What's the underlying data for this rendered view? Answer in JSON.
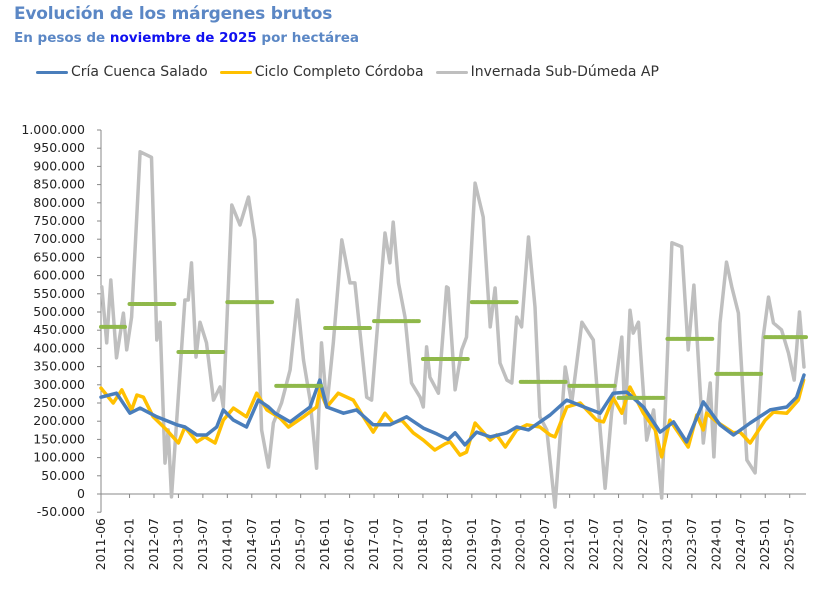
{
  "header": {
    "title": "Evolución de los márgenes brutos",
    "subtitle_prefix": "En pesos de ",
    "subtitle_highlight": "noviembre de 2025",
    "subtitle_suffix": " por hectárea"
  },
  "chart_data": {
    "type": "line",
    "title": "Evolución de los márgenes brutos",
    "subtitle": "En pesos de noviembre de 2025 por hectárea",
    "x_unit": "months since 2011-06",
    "x_range": [
      0,
      173
    ],
    "ylim": [
      -50000,
      1000000
    ],
    "y_ticks": [
      1000000,
      950000,
      900000,
      850000,
      800000,
      750000,
      700000,
      650000,
      600000,
      550000,
      500000,
      450000,
      400000,
      350000,
      300000,
      250000,
      200000,
      150000,
      100000,
      50000,
      0,
      -50000
    ],
    "y_tick_labels": [
      "1.000.000",
      "950.000",
      "900.000",
      "850.000",
      "800.000",
      "750.000",
      "700.000",
      "650.000",
      "600.000",
      "550.000",
      "500.000",
      "450.000",
      "400.000",
      "350.000",
      "300.000",
      "250.000",
      "200.000",
      "150.000",
      "100.000",
      "50.000",
      "0",
      "-50.000"
    ],
    "x_tick_labels": [
      "2011-06",
      "2012-01",
      "2012-07",
      "2013-01",
      "2013-07",
      "2014-01",
      "2014-07",
      "2015-01",
      "2015-07",
      "2016-01",
      "2016-07",
      "2017-01",
      "2017-07",
      "2018-01",
      "2018-07",
      "2019-01",
      "2019-07",
      "2020-01",
      "2020-07",
      "2021-01",
      "2021-07",
      "2022-01",
      "2022-07",
      "2023-01",
      "2023-07",
      "2024-01",
      "2024-07",
      "2025-01",
      "2025-07"
    ],
    "x_tick_months": [
      0,
      7,
      13,
      19,
      25,
      31,
      37,
      43,
      49,
      55,
      61,
      67,
      73,
      79,
      85,
      91,
      97,
      103,
      109,
      115,
      121,
      127,
      133,
      139,
      145,
      151,
      157,
      163,
      169
    ],
    "legend_position": "top-left",
    "grid": false,
    "series": [
      {
        "name": "Cría Cuenca Salado",
        "color": "#4a7ebb",
        "width": 3.5,
        "points": [
          [
            0,
            266000
          ],
          [
            3.8,
            277000
          ],
          [
            7.1,
            222000
          ],
          [
            9.6,
            236000
          ],
          [
            13.7,
            212000
          ],
          [
            18.6,
            190000
          ],
          [
            20.6,
            184000
          ],
          [
            23.5,
            162000
          ],
          [
            25.9,
            162000
          ],
          [
            28.4,
            184000
          ],
          [
            30,
            231000
          ],
          [
            32.5,
            203000
          ],
          [
            35.7,
            184000
          ],
          [
            38.6,
            258000
          ],
          [
            41.1,
            239000
          ],
          [
            42.7,
            222000
          ],
          [
            46.4,
            198000
          ],
          [
            51.3,
            239000
          ],
          [
            53.7,
            313000
          ],
          [
            55.4,
            239000
          ],
          [
            59.5,
            222000
          ],
          [
            62.7,
            231000
          ],
          [
            66.8,
            190000
          ],
          [
            70.9,
            190000
          ],
          [
            75,
            212000
          ],
          [
            79.1,
            181000
          ],
          [
            82.4,
            165000
          ],
          [
            85.2,
            150000
          ],
          [
            86.9,
            168000
          ],
          [
            89.3,
            135000
          ],
          [
            92.2,
            170000
          ],
          [
            95.5,
            157000
          ],
          [
            99.6,
            168000
          ],
          [
            102,
            184000
          ],
          [
            104.9,
            176000
          ],
          [
            110.2,
            217000
          ],
          [
            114.3,
            258000
          ],
          [
            119.2,
            236000
          ],
          [
            122.5,
            222000
          ],
          [
            125.7,
            277000
          ],
          [
            129,
            280000
          ],
          [
            133.1,
            239000
          ],
          [
            137.2,
            170000
          ],
          [
            140.5,
            198000
          ],
          [
            143.7,
            143000
          ],
          [
            147.8,
            253000
          ],
          [
            151.9,
            190000
          ],
          [
            155.2,
            162000
          ],
          [
            159.3,
            195000
          ],
          [
            164.2,
            231000
          ],
          [
            168.3,
            239000
          ],
          [
            170.7,
            266000
          ],
          [
            172.5,
            327000
          ]
        ]
      },
      {
        "name": "Ciclo Completo Córdoba",
        "color": "#ffc000",
        "width": 3.5,
        "points": [
          [
            0,
            291000
          ],
          [
            3,
            250000
          ],
          [
            5.1,
            286000
          ],
          [
            7.5,
            231000
          ],
          [
            8.8,
            272000
          ],
          [
            10.4,
            266000
          ],
          [
            12.8,
            212000
          ],
          [
            16.1,
            176000
          ],
          [
            19,
            140000
          ],
          [
            20.6,
            184000
          ],
          [
            23.5,
            143000
          ],
          [
            25.5,
            157000
          ],
          [
            28,
            140000
          ],
          [
            30,
            203000
          ],
          [
            32.5,
            236000
          ],
          [
            35.7,
            212000
          ],
          [
            38.2,
            277000
          ],
          [
            40.7,
            231000
          ],
          [
            43.9,
            209000
          ],
          [
            46,
            184000
          ],
          [
            49.7,
            212000
          ],
          [
            52.9,
            239000
          ],
          [
            53.7,
            286000
          ],
          [
            55.4,
            239000
          ],
          [
            58.2,
            277000
          ],
          [
            61.9,
            258000
          ],
          [
            64.4,
            212000
          ],
          [
            66.8,
            170000
          ],
          [
            69.7,
            222000
          ],
          [
            71.7,
            195000
          ],
          [
            73.8,
            203000
          ],
          [
            76.6,
            168000
          ],
          [
            79.1,
            148000
          ],
          [
            81.9,
            121000
          ],
          [
            84.5,
            138000
          ],
          [
            85.7,
            143000
          ],
          [
            88.1,
            107000
          ],
          [
            89.7,
            115000
          ],
          [
            91.8,
            195000
          ],
          [
            95.5,
            148000
          ],
          [
            97.1,
            162000
          ],
          [
            99.2,
            129000
          ],
          [
            102,
            176000
          ],
          [
            104.5,
            190000
          ],
          [
            107.7,
            184000
          ],
          [
            110.2,
            162000
          ],
          [
            111.4,
            157000
          ],
          [
            114.3,
            239000
          ],
          [
            117.6,
            250000
          ],
          [
            121.6,
            203000
          ],
          [
            123.3,
            198000
          ],
          [
            125.7,
            264000
          ],
          [
            127.8,
            222000
          ],
          [
            129.8,
            294000
          ],
          [
            133.1,
            222000
          ],
          [
            136,
            176000
          ],
          [
            137.6,
            102000
          ],
          [
            139.6,
            203000
          ],
          [
            144.1,
            129000
          ],
          [
            146.2,
            217000
          ],
          [
            147.8,
            176000
          ],
          [
            148.6,
            222000
          ],
          [
            151.1,
            198000
          ],
          [
            155.2,
            168000
          ],
          [
            156.8,
            170000
          ],
          [
            159.3,
            140000
          ],
          [
            163,
            203000
          ],
          [
            165,
            225000
          ],
          [
            168.3,
            222000
          ],
          [
            171.1,
            258000
          ],
          [
            172.4,
            313000
          ]
        ]
      },
      {
        "name": "Invernada Sub-Dúmeda AP",
        "color": "#bfbfbf",
        "width": 3.5,
        "points": [
          [
            0.2,
            569000
          ],
          [
            1.4,
            415000
          ],
          [
            2.4,
            588000
          ],
          [
            3.8,
            374000
          ],
          [
            5.5,
            497000
          ],
          [
            6.3,
            396000
          ],
          [
            7.5,
            486000
          ],
          [
            9.6,
            940000
          ],
          [
            12.4,
            925000
          ],
          [
            13.7,
            423000
          ],
          [
            14.5,
            472000
          ],
          [
            15.7,
            85000
          ],
          [
            16.5,
            176000
          ],
          [
            17.3,
            -8000
          ],
          [
            20.6,
            533000
          ],
          [
            21.4,
            533000
          ],
          [
            22.2,
            635000
          ],
          [
            23.3,
            376000
          ],
          [
            24.3,
            472000
          ],
          [
            25.9,
            415000
          ],
          [
            27.6,
            258000
          ],
          [
            29.2,
            294000
          ],
          [
            30,
            239000
          ],
          [
            32.1,
            794000
          ],
          [
            34.1,
            739000
          ],
          [
            36.2,
            816000
          ],
          [
            37.8,
            698000
          ],
          [
            39.4,
            176000
          ],
          [
            41.1,
            74000
          ],
          [
            42.3,
            195000
          ],
          [
            44.3,
            250000
          ],
          [
            46.4,
            341000
          ],
          [
            48.2,
            533000
          ],
          [
            49.7,
            368000
          ],
          [
            51.3,
            258000
          ],
          [
            52.9,
            71000
          ],
          [
            54.1,
            415000
          ],
          [
            55.4,
            239000
          ],
          [
            57,
            415000
          ],
          [
            59.1,
            698000
          ],
          [
            61.1,
            580000
          ],
          [
            62.3,
            580000
          ],
          [
            65.2,
            266000
          ],
          [
            66.4,
            258000
          ],
          [
            69.7,
            717000
          ],
          [
            70.9,
            635000
          ],
          [
            71.7,
            747000
          ],
          [
            73,
            580000
          ],
          [
            74.6,
            486000
          ],
          [
            76.2,
            305000
          ],
          [
            78.3,
            266000
          ],
          [
            79.1,
            239000
          ],
          [
            79.9,
            404000
          ],
          [
            80.7,
            321000
          ],
          [
            82.8,
            277000
          ],
          [
            84.8,
            569000
          ],
          [
            85.2,
            566000
          ],
          [
            86.9,
            286000
          ],
          [
            88.5,
            396000
          ],
          [
            89.7,
            431000
          ],
          [
            91.8,
            854000
          ],
          [
            93.8,
            761000
          ],
          [
            95.5,
            459000
          ],
          [
            96.7,
            566000
          ],
          [
            97.9,
            360000
          ],
          [
            99.6,
            313000
          ],
          [
            100.8,
            305000
          ],
          [
            102,
            486000
          ],
          [
            103.2,
            459000
          ],
          [
            104.9,
            706000
          ],
          [
            106.5,
            514000
          ],
          [
            107.7,
            212000
          ],
          [
            109.4,
            176000
          ],
          [
            111.4,
            -36000
          ],
          [
            113.9,
            349000
          ],
          [
            115.5,
            250000
          ],
          [
            118,
            472000
          ],
          [
            120.8,
            423000
          ],
          [
            122.5,
            176000
          ],
          [
            123.7,
            16000
          ],
          [
            125.3,
            222000
          ],
          [
            127.8,
            431000
          ],
          [
            128.6,
            195000
          ],
          [
            129.8,
            505000
          ],
          [
            130.6,
            442000
          ],
          [
            131.9,
            472000
          ],
          [
            133.9,
            148000
          ],
          [
            135.6,
            231000
          ],
          [
            137.6,
            -11000
          ],
          [
            140.1,
            690000
          ],
          [
            142.5,
            679000
          ],
          [
            144.1,
            396000
          ],
          [
            145.5,
            574000
          ],
          [
            147.8,
            140000
          ],
          [
            149.5,
            305000
          ],
          [
            150.4,
            102000
          ],
          [
            151.9,
            470000
          ],
          [
            153.5,
            637000
          ],
          [
            154.8,
            569000
          ],
          [
            156.4,
            497000
          ],
          [
            158.5,
            93000
          ],
          [
            160.5,
            58000
          ],
          [
            162.5,
            431000
          ],
          [
            163.8,
            541000
          ],
          [
            165,
            470000
          ],
          [
            167,
            451000
          ],
          [
            168.7,
            387000
          ],
          [
            170.1,
            313000
          ],
          [
            171.4,
            500000
          ],
          [
            172.5,
            349000
          ]
        ]
      }
    ],
    "annual_averages": {
      "color": "#8fb84a",
      "years": [
        {
          "year": 2011,
          "from": 0,
          "to": 6,
          "value": 459000
        },
        {
          "year": 2012,
          "from": 7,
          "to": 18,
          "value": 522000
        },
        {
          "year": 2013,
          "from": 19,
          "to": 30,
          "value": 390000
        },
        {
          "year": 2014,
          "from": 31,
          "to": 42,
          "value": 527000
        },
        {
          "year": 2015,
          "from": 43,
          "to": 54,
          "value": 297000
        },
        {
          "year": 2016,
          "from": 55,
          "to": 66,
          "value": 456000
        },
        {
          "year": 2017,
          "from": 67,
          "to": 78,
          "value": 475000
        },
        {
          "year": 2018,
          "from": 79,
          "to": 90,
          "value": 371000
        },
        {
          "year": 2019,
          "from": 91,
          "to": 102,
          "value": 527000
        },
        {
          "year": 2020,
          "from": 103,
          "to": 114,
          "value": 308000
        },
        {
          "year": 2021,
          "from": 115,
          "to": 126,
          "value": 297000
        },
        {
          "year": 2022,
          "from": 127,
          "to": 138,
          "value": 264000
        },
        {
          "year": 2023,
          "from": 139,
          "to": 150,
          "value": 426000
        },
        {
          "year": 2024,
          "from": 151,
          "to": 162,
          "value": 330000
        },
        {
          "year": 2025,
          "from": 163,
          "to": 173,
          "value": 431000
        }
      ]
    }
  }
}
